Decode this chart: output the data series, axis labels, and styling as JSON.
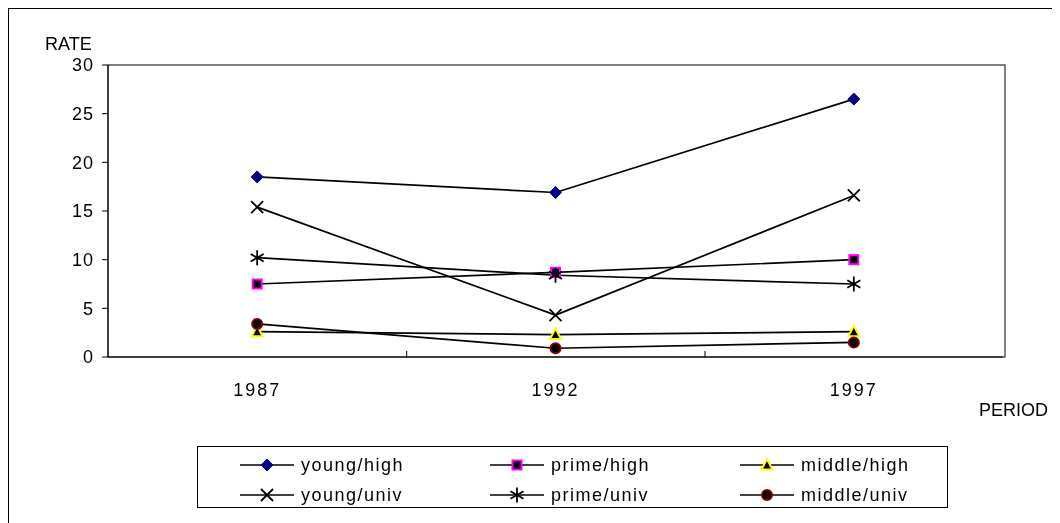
{
  "chart_data": {
    "type": "line",
    "xlabel": "PERIOD",
    "ylabel": "RATE",
    "categories": [
      "1987",
      "1992",
      "1997"
    ],
    "ylim": [
      0,
      30
    ],
    "yticks": [
      0,
      5,
      10,
      15,
      20,
      25,
      30
    ],
    "legend": "bottom",
    "line_style": "solid",
    "series": [
      {
        "name": "young/high",
        "color": "#000080",
        "marker": "diamond",
        "values": [
          18.5,
          16.9,
          26.5
        ]
      },
      {
        "name": "prime/high",
        "color": "#ff00ff",
        "marker": "square",
        "values": [
          7.5,
          8.7,
          10.0
        ]
      },
      {
        "name": "middle/high",
        "color": "#ffff00",
        "marker": "triangle",
        "values": [
          2.6,
          2.3,
          2.6
        ]
      },
      {
        "name": "young/univ",
        "color": "#000000",
        "marker": "cross",
        "values": [
          15.4,
          4.3,
          16.6
        ]
      },
      {
        "name": "prime/univ",
        "color": "#000000",
        "marker": "star",
        "values": [
          10.2,
          8.4,
          7.5
        ]
      },
      {
        "name": "middle/univ",
        "color": "#800000",
        "marker": "circle",
        "values": [
          3.4,
          0.9,
          1.5
        ]
      }
    ]
  }
}
